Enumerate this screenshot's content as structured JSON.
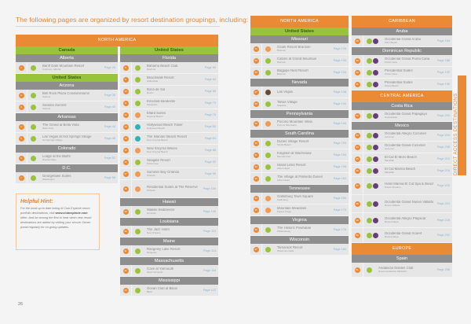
{
  "heading": "The following pages are organized by resort destination groupings, including:",
  "page_number": "26",
  "side_tab": "DIRECT ACCESS DESTINATIONS",
  "hint": {
    "title": "Helpful Hint:",
    "body_before": "For the most up to date listing of Club Explorie resort portfolio destinations, visit ",
    "link": "www.clubexplorie.com",
    "body_after": " often. And be among the first to hear when new resort destinations are added by visiting your secure Owner portal regularly for on-going updates."
  },
  "colors": {
    "accent_orange": "#ea8a35",
    "accent_green": "#9ac33c",
    "state_gray": "#8e8e8e",
    "page_link_blue": "#7fb6d8"
  },
  "col1": {
    "region": "NORTH AMERICA",
    "groups": [
      {
        "country": "Canada",
        "states": [
          {
            "name": "Alberta",
            "rows": [
              {
                "num": "1",
                "badges": [
                  "green"
                ],
                "name": "Banff Gate Mountain Resort",
                "city": "Canmore, Alberta",
                "page": "Page 26"
              }
            ]
          }
        ]
      },
      {
        "country": "United States",
        "states": [
          {
            "name": "Arizona",
            "rows": [
              {
                "num": "2",
                "badges": [
                  "green"
                ],
                "name": "Bell Rock Plaza Condominiums",
                "city": "Sedona",
                "page": "Page 36"
              },
              {
                "num": "3",
                "badges": [
                  "green"
                ],
                "name": "Sedona Summit",
                "city": "Sedona",
                "page": "Page 40"
              }
            ]
          },
          {
            "name": "Arkansas",
            "rows": [
              {
                "num": "4",
                "badges": [
                  "green"
                ],
                "name": "The Grand at Bella Vista",
                "city": "Bella Vista",
                "page": "Page 44"
              },
              {
                "num": "5",
                "badges": [
                  "green"
                ],
                "name": "Las Vegas at Hot Springs Village",
                "city": "Hot Springs Village",
                "page": "Page 48"
              }
            ]
          },
          {
            "name": "Colorado",
            "rows": [
              {
                "num": "6",
                "badges": [
                  "green"
                ],
                "name": "Lodge at the Bluffs",
                "city": "Breckenridge",
                "page": "Page 52"
              }
            ]
          },
          {
            "name": "D.C.",
            "rows": [
              {
                "num": "7",
                "badges": [
                  "green"
                ],
                "name": "Georgetown Suites",
                "city": "Washington",
                "page": "Page 56"
              }
            ]
          }
        ]
      }
    ]
  },
  "col2": {
    "country": "United States",
    "states": [
      {
        "name": "Florida",
        "rows": [
          {
            "num": "8",
            "badges": [
              "green"
            ],
            "name": "Bahama Beach Club",
            "city": "Daytona",
            "page": "Page 60"
          },
          {
            "num": "9",
            "badges": [
              "green"
            ],
            "name": "Beachwalk Resort",
            "city": "Hallandale",
            "page": "Page 64"
          },
          {
            "num": "10",
            "badges": [
              "green"
            ],
            "name": "Boca de Sol",
            "city": "Destin",
            "page": "Page 68"
          },
          {
            "num": "11",
            "badges": [
              "green"
            ],
            "name": "Emerald Sandestin",
            "city": "Sandestin",
            "page": "Page 72"
          },
          {
            "num": "12",
            "badges": [
              "lorange"
            ],
            "name": "Ellard Suites",
            "city": "Daytona Beach",
            "page": "Page 76"
          },
          {
            "num": "13",
            "badges": [
              "teal"
            ],
            "name": "Hollywood Beach Tower",
            "city": "Hollywood Beach",
            "page": "Page 80"
          },
          {
            "num": "14",
            "badges": [
              "teal"
            ],
            "name": "The Islander Beach Resort",
            "city": "New Smyrna Beach",
            "page": "Page 84"
          },
          {
            "num": "15",
            "badges": [
              "lorange"
            ],
            "name": "New Smyrna Waves",
            "city": "New Smyrna Beach",
            "page": "Page 88"
          },
          {
            "num": "16",
            "badges": [
              "green"
            ],
            "name": "Seagate Resort",
            "city": "Kissimmee",
            "page": "Page 92"
          },
          {
            "num": "17",
            "badges": [
              "lorange"
            ],
            "name": "Summer Bay Orlando",
            "city": "Orlando",
            "page": "Page 96"
          },
          {
            "num": "18",
            "badges": [
              "lorange"
            ],
            "name": "Residential Suites at The Reserve",
            "city": "Orlando",
            "page": "Page 100",
            "tall": true
          }
        ]
      },
      {
        "name": "Hawaii",
        "rows": [
          {
            "num": "19",
            "badges": [
              "green"
            ],
            "name": "Waikiki Seabreeze",
            "city": "Honolulu",
            "page": "Page 106"
          }
        ]
      },
      {
        "name": "Louisiana",
        "rows": [
          {
            "num": "20",
            "badges": [
              "green"
            ],
            "name": "The Jazz Hotel",
            "city": "New Orleans",
            "page": "Page 110"
          }
        ]
      },
      {
        "name": "Maine",
        "rows": [
          {
            "num": "21",
            "badges": [
              "green"
            ],
            "name": "Rangeley Lake Resort",
            "city": "Rangeley",
            "page": "Page 114"
          }
        ]
      },
      {
        "name": "Massachusetts",
        "rows": [
          {
            "num": "22",
            "badges": [
              "green"
            ],
            "name": "Cove at Yarmouth",
            "city": "West Yarmouth",
            "page": "Page 118"
          }
        ]
      },
      {
        "name": "Mississippi",
        "rows": [
          {
            "num": "23",
            "badges": [
              "green"
            ],
            "name": "Ocean Club at Biloxi",
            "city": "Biloxi",
            "page": "Page 122"
          }
        ]
      }
    ]
  },
  "col3": {
    "region": "NORTH AMERICA",
    "country": "United States",
    "states": [
      {
        "name": "Missouri",
        "rows": [
          {
            "num": "24",
            "badges": [
              "lorange"
            ],
            "name": "Ozark Resort Branson",
            "city": "Branson",
            "page": "Page 126"
          },
          {
            "num": "25",
            "badges": [
              "green"
            ],
            "name": "Cabins at Grand Mountain",
            "city": "Branson",
            "page": "Page 130"
          },
          {
            "num": "26",
            "badges": [
              "green"
            ],
            "name": "Bagpipe Nest Resort",
            "city": "Branson",
            "page": "Page 134"
          }
        ]
      },
      {
        "name": "Nevada",
        "rows": [
          {
            "num": "27",
            "badges": [
              "brown"
            ],
            "name": "Las Vegas",
            "city": "",
            "page": "Page 138"
          },
          {
            "num": "28",
            "badges": [
              "green"
            ],
            "name": "Tahoe Village",
            "city": "Stateline",
            "page": "Page 140"
          }
        ]
      },
      {
        "name": "Pennsylvania",
        "rows": [
          {
            "num": "29",
            "badges": [
              "lorange"
            ],
            "name": "Pocono Mountain Villas",
            "city": "Pocono Mountains",
            "page": "Page 144"
          }
        ]
      },
      {
        "name": "South Carolina",
        "rows": [
          {
            "num": "30",
            "badges": [
              "green"
            ],
            "name": "Dunes Village Resort",
            "city": "Myrtle Beach",
            "page": "Page 150"
          },
          {
            "num": "31",
            "badges": [
              "green"
            ],
            "name": "Kingston at Wachesaw",
            "city": "Murrells Inlet",
            "page": "Page 154"
          },
          {
            "num": "32",
            "badges": [
              "green"
            ],
            "name": "Island Links Resort",
            "city": "Hilton Head",
            "page": "Page 158"
          },
          {
            "num": "33",
            "badges": [
              "green"
            ],
            "name": "The Village at Palmetto Dunes",
            "city": "Hilton Head",
            "page": "Page 162"
          }
        ]
      },
      {
        "name": "Tennessee",
        "rows": [
          {
            "num": "34",
            "badges": [
              "lorange"
            ],
            "name": "Gatlinburg Town Square",
            "city": "Gatlinburg",
            "page": "Page 166"
          },
          {
            "num": "35",
            "badges": [
              "lorange"
            ],
            "name": "Mountain Meadows",
            "city": "Pigeon Forge",
            "page": "Page 170"
          }
        ]
      },
      {
        "name": "Virginia",
        "rows": [
          {
            "num": "36",
            "badges": [
              "green"
            ],
            "name": "The Historic Powhatan",
            "city": "Williamsburg",
            "page": "Page 176"
          }
        ]
      },
      {
        "name": "Wisconsin",
        "rows": [
          {
            "num": "37",
            "badges": [
              "green"
            ],
            "name": "Tamarack Resort",
            "city": "Wisconsin Dells",
            "page": "Page 180"
          }
        ]
      }
    ]
  },
  "col4": {
    "sections": [
      {
        "region": "CARIBBEAN",
        "states": [
          {
            "name": "Aruba",
            "rows": [
              {
                "num": "38",
                "badges": [
                  "green",
                  "purple"
                ],
                "name": "Occidental Grand Aruba",
                "city": "Palm Beach",
                "page": "Page 184"
              }
            ]
          },
          {
            "name": "Dominican Republic",
            "rows": [
              {
                "num": "39",
                "badges": [
                  "green",
                  "purple"
                ],
                "name": "Occidental Grand Punta Cana",
                "city": "Punta Cana",
                "page": "Page 188"
              },
              {
                "num": "40",
                "badges": [
                  "green",
                  "purple"
                ],
                "name": "Presidential Suites",
                "city": "Punta Cana",
                "page": "Page 192"
              },
              {
                "num": "41",
                "badges": [
                  "green",
                  "purple"
                ],
                "name": "Presidential Suites",
                "city": "Sosua Beach",
                "page": "Page 196"
              }
            ]
          }
        ]
      },
      {
        "region": "CENTRAL AMERICA",
        "states": [
          {
            "name": "Costa Rica",
            "rows": [
              {
                "num": "42",
                "badges": [
                  "green",
                  "purple"
                ],
                "name": "Occidental Grand Papagayo",
                "city": "Guanacaste",
                "page": "Page 200"
              }
            ]
          },
          {
            "name": "Mexico",
            "rows": [
              {
                "num": "43",
                "badges": [
                  "green",
                  "purple"
                ],
                "name": "Occidental Allegro Cozumel",
                "city": "Cozumel",
                "page": "Page 204"
              },
              {
                "num": "44",
                "badges": [
                  "green",
                  "purple"
                ],
                "name": "Occidental Grand Cozumel",
                "city": "Cozumel",
                "page": "Page 208"
              },
              {
                "num": "45",
                "badges": [
                  "green",
                  "purple"
                ],
                "name": "El Cid El Moro Beach",
                "city": "Mazatlán",
                "page": "Page 212"
              },
              {
                "num": "46",
                "badges": [
                  "green",
                  "purple"
                ],
                "name": "El Cid Marina Beach",
                "city": "Mazatlán",
                "page": "Page 216"
              },
              {
                "num": "47",
                "badges": [
                  "green",
                  "purple"
                ],
                "name": "Hotel Marina El Cid Spa & Beach Resort",
                "city": "Puerto Morelos",
                "page": "Page 220",
                "tall": true
              },
              {
                "num": "48",
                "badges": [
                  "green",
                  "purple"
                ],
                "name": "Occidental Grand Nuevo Vallarta",
                "city": "Nuevo Vallarta",
                "page": "Page 224",
                "tall": true
              },
              {
                "num": "49",
                "badges": [
                  "green",
                  "purple"
                ],
                "name": "Occidental Allegro Playacar",
                "city": "Riviera Maya",
                "page": "Page 228",
                "mid": true
              },
              {
                "num": "50",
                "badges": [
                  "green",
                  "purple"
                ],
                "name": "Occidental Grand Xcaret",
                "city": "Riviera Maya",
                "page": "Page 232",
                "mid": true
              }
            ]
          }
        ]
      },
      {
        "region": "EUROPE",
        "states": [
          {
            "name": "Spain",
            "rows": [
              {
                "num": "51",
                "badges": [
                  "green"
                ],
                "name": "Andalucia Garden Club",
                "city": "Nueva Andalucia, Marbella",
                "page": "Page 236",
                "mid": true
              }
            ]
          }
        ]
      }
    ]
  }
}
